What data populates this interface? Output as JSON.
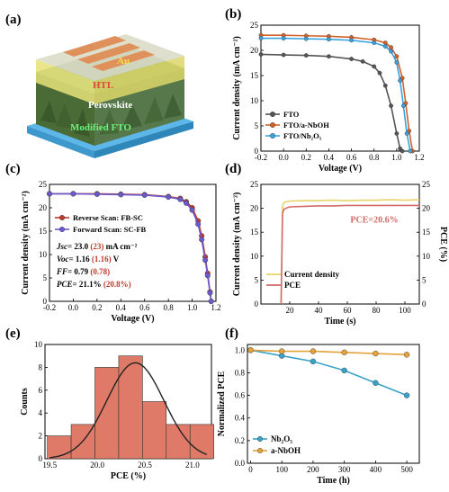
{
  "panel_labels": {
    "a": "(a)",
    "b": "(b)",
    "c": "(c)",
    "d": "(d)",
    "e": "(e)",
    "f": "(f)"
  },
  "device": {
    "layers": [
      "Au",
      "HTL",
      "Perovskite",
      "Modified FTO"
    ],
    "colors": {
      "au": "#e0905a",
      "htl": "#e6e27a",
      "perovskite": "#4f6f3a",
      "fto": "#5db7e8",
      "top_glass": "#dcdcc8"
    }
  },
  "chart_data": [
    {
      "id": "b",
      "type": "line",
      "xlabel": "Voltage (V)",
      "ylabel": "Current density (mA cm⁻²)",
      "xlim": [
        -0.2,
        1.2
      ],
      "ylim": [
        0,
        25
      ],
      "xticks": [
        "-0.2",
        "0.0",
        "0.2",
        "0.4",
        "0.6",
        "0.8",
        "1.0",
        "1.2"
      ],
      "yticks": [
        "0",
        "5",
        "10",
        "15",
        "20",
        "25"
      ],
      "legend_position": "bottom-left",
      "series": [
        {
          "name": "FTO",
          "color": "#555555",
          "marker": "circle",
          "x": [
            -0.2,
            0.0,
            0.2,
            0.4,
            0.6,
            0.7,
            0.8,
            0.85,
            0.9,
            0.95,
            1.0,
            1.03,
            1.05
          ],
          "y": [
            19.2,
            19.1,
            19.0,
            18.8,
            18.3,
            17.8,
            16.8,
            15.5,
            13.0,
            9.0,
            3.5,
            0.5,
            0
          ]
        },
        {
          "name": "FTO/a-NbOH",
          "color": "#d2622a",
          "marker": "circle",
          "x": [
            -0.2,
            0.0,
            0.2,
            0.4,
            0.6,
            0.8,
            0.9,
            0.95,
            1.0,
            1.05,
            1.08,
            1.11,
            1.14
          ],
          "y": [
            23.0,
            23.0,
            22.9,
            22.8,
            22.6,
            22.1,
            21.5,
            20.6,
            18.8,
            14.5,
            9.5,
            4.0,
            0
          ]
        },
        {
          "name": "FTO/Nb₂O₅",
          "color": "#3aa2df",
          "marker": "circle",
          "x": [
            -0.2,
            0.0,
            0.2,
            0.4,
            0.6,
            0.8,
            0.9,
            0.95,
            1.0,
            1.03,
            1.06,
            1.09,
            1.12
          ],
          "y": [
            22.4,
            22.4,
            22.3,
            22.2,
            22.0,
            21.5,
            20.8,
            19.8,
            17.6,
            14.0,
            9.0,
            3.5,
            0
          ]
        }
      ]
    },
    {
      "id": "c",
      "type": "line",
      "xlabel": "Voltage (V)",
      "ylabel": "Current density (mA cm⁻²)",
      "xlim": [
        -0.2,
        1.2
      ],
      "ylim": [
        0,
        25
      ],
      "xticks": [
        "-0.2",
        "0.0",
        "0.2",
        "0.4",
        "0.6",
        "0.8",
        "1.0",
        "1.2"
      ],
      "yticks": [
        "0",
        "5",
        "10",
        "15",
        "20",
        "25"
      ],
      "series": [
        {
          "name": "Reverse Scan: FB-SC",
          "color": "#c0392b",
          "marker": "circle",
          "x": [
            -0.2,
            0.0,
            0.2,
            0.4,
            0.6,
            0.8,
            0.9,
            0.95,
            1.0,
            1.05,
            1.08,
            1.11,
            1.13,
            1.15,
            1.16
          ],
          "y": [
            23.0,
            23.0,
            23.0,
            22.9,
            22.8,
            22.4,
            22.0,
            21.3,
            20.0,
            17.2,
            14.0,
            9.5,
            6.0,
            2.0,
            0
          ]
        },
        {
          "name": "Forward Scan: SC-FB",
          "color": "#6a5acd",
          "marker": "circle",
          "x": [
            -0.2,
            0.0,
            0.2,
            0.4,
            0.6,
            0.8,
            0.9,
            0.95,
            1.0,
            1.05,
            1.08,
            1.11,
            1.13,
            1.15,
            1.16
          ],
          "y": [
            23.0,
            23.0,
            22.9,
            22.8,
            22.7,
            22.3,
            21.8,
            21.0,
            19.5,
            16.5,
            13.2,
            8.8,
            5.5,
            1.8,
            0
          ]
        }
      ],
      "annotations": [
        {
          "symbol": "Jsc",
          "text": "= 23.0 ",
          "paren": "(23)",
          "unit": " mA cm⁻²"
        },
        {
          "symbol": "Voc",
          "text": "= 1.16 ",
          "paren": "(1.16)",
          "unit": " V"
        },
        {
          "symbol": "FF",
          "text": "= 0.79 ",
          "paren": "(0.78)",
          "unit": ""
        },
        {
          "symbol": "PCE",
          "text": "= 21.1% ",
          "paren": "(20.8%)",
          "unit": ""
        }
      ]
    },
    {
      "id": "d",
      "type": "line",
      "xlabel": "Time (s)",
      "ylabel": "Current density (mA cm⁻²)",
      "ylabel_right": "PCE (%)",
      "xlim": [
        0,
        110
      ],
      "ylim": [
        0,
        25
      ],
      "xticks": [
        "20",
        "40",
        "60",
        "80",
        "100"
      ],
      "yticks": [
        "0",
        "5",
        "10",
        "15",
        "20",
        "25"
      ],
      "annotation": "PCE=20.6%",
      "legend_position": "bottom-left",
      "series": [
        {
          "name": "Current density",
          "color": "#e8d36a",
          "x": [
            14,
            15,
            16,
            18,
            20,
            30,
            40,
            50,
            60,
            70,
            80,
            90,
            100,
            110
          ],
          "y": [
            0,
            20.5,
            21.2,
            21.4,
            21.5,
            21.6,
            21.6,
            21.7,
            21.6,
            21.7,
            21.7,
            21.8,
            21.7,
            21.8
          ]
        },
        {
          "name": "PCE",
          "color": "#d26a6a",
          "x": [
            14,
            15,
            16,
            18,
            20,
            30,
            40,
            50,
            60,
            70,
            80,
            90,
            100,
            110
          ],
          "y": [
            0,
            19.0,
            19.8,
            20.1,
            20.3,
            20.4,
            20.5,
            20.5,
            20.6,
            20.6,
            20.6,
            20.6,
            20.6,
            20.6
          ]
        }
      ]
    },
    {
      "id": "e",
      "type": "bar",
      "xlabel": "PCE (%)",
      "ylabel": "Counts",
      "xlim": [
        19.45,
        21.2
      ],
      "ylim": [
        0,
        10
      ],
      "xticks": [
        "19.5",
        "20.0",
        "20.5",
        "21.0"
      ],
      "yticks": [
        "0",
        "2",
        "4",
        "6",
        "8",
        "10"
      ],
      "bin_centers": [
        19.6,
        19.85,
        20.1,
        20.35,
        20.6,
        20.85,
        21.1
      ],
      "bin_width": 0.25,
      "values": [
        2,
        3,
        8,
        9,
        5,
        3,
        3
      ],
      "fit": {
        "mean": 20.4,
        "sigma": 0.3,
        "peak": 8.4,
        "color": "#222222"
      },
      "color": "#e07a68"
    },
    {
      "id": "f",
      "type": "line",
      "xlabel": "Time (h)",
      "ylabel": "Normalized PCE",
      "xlim": [
        -10,
        540
      ],
      "ylim": [
        0,
        1.05
      ],
      "xticks": [
        "0",
        "100",
        "200",
        "300",
        "400",
        "500"
      ],
      "yticks": [
        "0.0",
        "0.2",
        "0.4",
        "0.6",
        "0.8",
        "1.0"
      ],
      "legend_position": "bottom-left",
      "series": [
        {
          "name": "Nb₂O₅",
          "color": "#3aa2c8",
          "marker": "circle",
          "x": [
            0,
            100,
            200,
            300,
            400,
            500
          ],
          "y": [
            1.0,
            0.95,
            0.9,
            0.82,
            0.71,
            0.6
          ]
        },
        {
          "name": "a-NbOH",
          "color": "#e3a23a",
          "marker": "circle",
          "x": [
            0,
            100,
            200,
            300,
            400,
            500
          ],
          "y": [
            1.0,
            0.99,
            0.99,
            0.98,
            0.97,
            0.96
          ]
        }
      ]
    }
  ]
}
